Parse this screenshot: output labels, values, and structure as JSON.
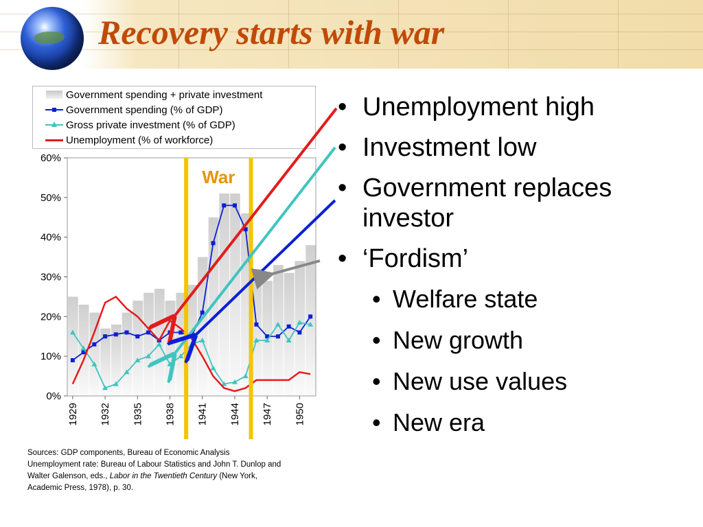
{
  "slide": {
    "title": "Recovery starts with war",
    "war_label": "War",
    "sources_line1": "Sources: GDP components, Bureau of Economic Analysis",
    "sources_line2": "Unemployment rate: Bureau of Labour Statistics and John T. Dunlop and",
    "sources_line3_prefix": "Walter Galenson, eds., ",
    "sources_italic": "Labor in the Twentieth Century",
    "sources_line3_suffix": " (New York,",
    "sources_line4": "Academic Press, 1978), p. 30."
  },
  "bullets": {
    "b1": "Unemployment high",
    "b2": "Investment low",
    "b3": "Government replaces investor",
    "b4": "‘Fordism’",
    "sub1": "Welfare state",
    "sub2": "New growth",
    "sub3": "New use values",
    "sub4": "New era"
  },
  "colors": {
    "title": "#c04a08",
    "gov": "#0b1fd6",
    "private": "#40c4c0",
    "unemp": "#e31b1b",
    "war_line": "#f5c400",
    "bars": "#d9d9d9"
  },
  "chart_data": {
    "type": "bar+line",
    "x": [
      1929,
      1930,
      1931,
      1932,
      1933,
      1934,
      1935,
      1936,
      1937,
      1938,
      1939,
      1940,
      1941,
      1942,
      1943,
      1944,
      1945,
      1946,
      1947,
      1948,
      1949,
      1950,
      1951
    ],
    "x_tick_labels": [
      "1929",
      "1932",
      "1935",
      "1938",
      "1941",
      "1944",
      "1947",
      "1950"
    ],
    "y_tick_labels": [
      "0%",
      "10%",
      "20%",
      "30%",
      "40%",
      "50%",
      "60%"
    ],
    "ylim": [
      0,
      60
    ],
    "legend": [
      "Government spending + private investment",
      "Government spending (% of GDP)",
      "Gross private investment (% of GDP)",
      "Unemployment (% of workforce)"
    ],
    "series": [
      {
        "name": "Government spending + private investment",
        "kind": "bar",
        "values": [
          25,
          23,
          21,
          17,
          18,
          21,
          24,
          26,
          27,
          24,
          26,
          28,
          35,
          45,
          51,
          51,
          46,
          32,
          29,
          33,
          31,
          34,
          38
        ]
      },
      {
        "name": "Government spending (% of GDP)",
        "kind": "line",
        "marker": "square",
        "values": [
          9,
          11,
          13,
          15,
          15.5,
          16,
          15,
          16,
          14,
          16,
          16,
          15,
          21,
          38.5,
          48,
          48,
          42,
          18,
          15,
          15,
          17.5,
          16,
          20
        ]
      },
      {
        "name": "Gross private investment (% of GDP)",
        "kind": "line",
        "marker": "triangle",
        "values": [
          16,
          12,
          8,
          2,
          3,
          6,
          9,
          10,
          13,
          8,
          10,
          13,
          14,
          7,
          3,
          3.5,
          5,
          14,
          14,
          18,
          14,
          18.5,
          18
        ]
      },
      {
        "name": "Unemployment (% of workforce)",
        "kind": "line",
        "marker": "none",
        "values": [
          3,
          9,
          16,
          23.5,
          25,
          22,
          20,
          17,
          14,
          19,
          17,
          14.5,
          10,
          5,
          2,
          1.2,
          2,
          4,
          4,
          4,
          4,
          6,
          5.5
        ]
      }
    ],
    "war_years": [
      1939.5,
      1945.5
    ]
  }
}
